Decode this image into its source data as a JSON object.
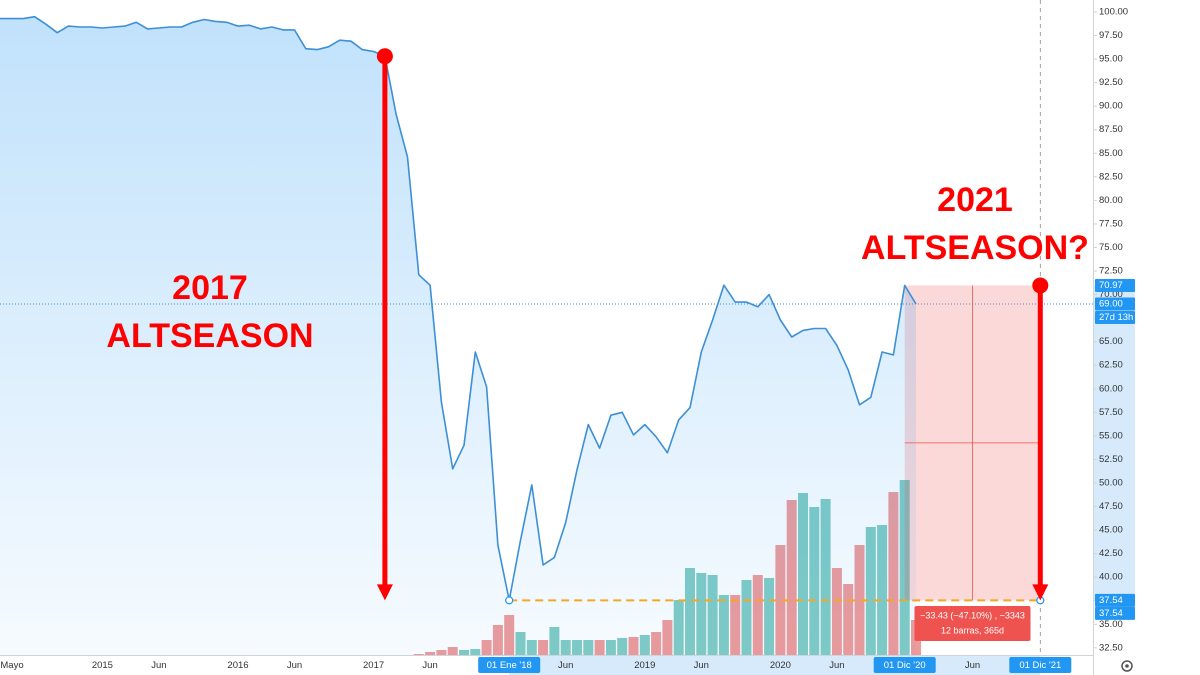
{
  "chart_data": {
    "type": "area",
    "color": "#3d8fd6",
    "categories": [
      "Mayo",
      null,
      null,
      null,
      null,
      null,
      null,
      null,
      "2015",
      null,
      null,
      null,
      null,
      "Jun",
      null,
      null,
      null,
      null,
      null,
      null,
      "2016",
      null,
      null,
      null,
      null,
      "Jun",
      null,
      null,
      null,
      null,
      null,
      null,
      "2017",
      null,
      null,
      null,
      null,
      "Jun",
      null,
      null,
      null,
      null,
      null,
      null,
      "01 Ene '18",
      null,
      null,
      null,
      null,
      "Jun",
      null,
      null,
      null,
      null,
      null,
      null,
      "2019",
      null,
      null,
      null,
      null,
      "Jun",
      null,
      null,
      null,
      null,
      null,
      null,
      "2020",
      null,
      null,
      null,
      null,
      "Jun",
      null,
      null,
      null,
      null,
      null,
      "01 Dic '20",
      null,
      null,
      null,
      null,
      null,
      "Jun",
      null,
      null,
      null,
      null,
      null,
      "01 Dic '21"
    ],
    "values": [
      99.3,
      99.3,
      99.5,
      98.7,
      97.8,
      98.5,
      98.4,
      98.4,
      98.3,
      98.4,
      98.5,
      98.9,
      98.2,
      98.3,
      98.4,
      98.4,
      98.9,
      99.2,
      99.0,
      98.9,
      98.5,
      98.6,
      98.2,
      98.4,
      98.1,
      98.1,
      96.1,
      96.0,
      96.3,
      97.0,
      96.9,
      96.0,
      95.8,
      95.3,
      89.1,
      84.6,
      72.1,
      71.0,
      58.6,
      51.5,
      54.0,
      63.9,
      60.2,
      43.4,
      37.54,
      43.9,
      49.8,
      41.3,
      42.1,
      45.8,
      51.4,
      56.2,
      53.7,
      57.2,
      57.5,
      55.1,
      56.2,
      54.9,
      53.2,
      56.7,
      58.0,
      63.9,
      67.3,
      71.0,
      69.2,
      69.2,
      68.7,
      70.0,
      67.3,
      65.5,
      66.2,
      66.4,
      66.4,
      64.6,
      62.0,
      58.3,
      59.1,
      63.9,
      63.6,
      70.97,
      69.0,
      null,
      null,
      null,
      null,
      null,
      null,
      null,
      null,
      null,
      null,
      null
    ],
    "volume": [
      null,
      null,
      null,
      null,
      null,
      null,
      null,
      null,
      null,
      null,
      null,
      null,
      null,
      null,
      null,
      null,
      null,
      null,
      null,
      null,
      null,
      null,
      null,
      null,
      null,
      null,
      null,
      null,
      null,
      null,
      null,
      null,
      null,
      null,
      null,
      null,
      1,
      3,
      5,
      8,
      5,
      6,
      15,
      30,
      40,
      23,
      15,
      15,
      28,
      15,
      15,
      15,
      15,
      15,
      17,
      18,
      20,
      23,
      35,
      55,
      87,
      82,
      80,
      60,
      60,
      75,
      80,
      77,
      110,
      155,
      162,
      148,
      156,
      87,
      71,
      110,
      128,
      130,
      163,
      175,
      35,
      null,
      null,
      null,
      null,
      null,
      null,
      null,
      null,
      null,
      null,
      null
    ],
    "volume_colors": {
      "up": "#80cbc4",
      "down": "#ef9a9a"
    },
    "ylim": [
      31.74,
      101.27
    ],
    "yticks": [
      {
        "value": 32.5,
        "label": "32.50"
      },
      {
        "value": 35,
        "label": "35.00"
      },
      {
        "value": 37.5,
        "label": "37.50"
      },
      {
        "value": 40,
        "label": "40.00"
      },
      {
        "value": 42.5,
        "label": "42.50"
      },
      {
        "value": 45,
        "label": "45.00"
      },
      {
        "value": 47.5,
        "label": "47.50"
      },
      {
        "value": 50,
        "label": "50.00"
      },
      {
        "value": 52.5,
        "label": "52.50"
      },
      {
        "value": 55,
        "label": "55.00"
      },
      {
        "value": 57.5,
        "label": "57.50"
      },
      {
        "value": 60,
        "label": "60.00"
      },
      {
        "value": 62.5,
        "label": "62.50"
      },
      {
        "value": 65,
        "label": "65.00"
      },
      {
        "value": 67.5,
        "label": "67.50"
      },
      {
        "value": 70,
        "label": "70.00"
      },
      {
        "value": 72.5,
        "label": "72.50"
      },
      {
        "value": 75,
        "label": "75.00"
      },
      {
        "value": 77.5,
        "label": "77.50"
      },
      {
        "value": 80,
        "label": "80.00"
      },
      {
        "value": 82.5,
        "label": "82.50"
      },
      {
        "value": 85,
        "label": "85.00"
      },
      {
        "value": 87.5,
        "label": "87.50"
      },
      {
        "value": 90,
        "label": "90.00"
      },
      {
        "value": 92.5,
        "label": "92.50"
      },
      {
        "value": 95,
        "label": "95.00"
      },
      {
        "value": 97.5,
        "label": "97.50"
      },
      {
        "value": 100,
        "label": "100.00"
      }
    ],
    "price_tags": [
      {
        "value": 70.97,
        "label": "70.97"
      },
      {
        "value": 69.0,
        "label": "69.00"
      },
      {
        "value": 37.54,
        "label": "37.54"
      },
      {
        "value": 37.54,
        "label": "37.54"
      }
    ],
    "countdown": "27d 13h",
    "annotations": [
      {
        "lines": [
          "2017",
          "ALTSEASON"
        ]
      },
      {
        "lines": [
          "2021",
          "ALTSEASON?"
        ]
      }
    ],
    "annotation_color": "#ff0000",
    "arrows": [
      {
        "index": 33,
        "from": 95.3,
        "to": 37.54
      },
      {
        "index": 91,
        "from": 70.97,
        "to": 37.54
      }
    ],
    "support": {
      "value": 37.54,
      "start_index": 44,
      "end_index": 91,
      "color": "#f5a623"
    },
    "measure": {
      "start_index": 79,
      "end_index": 91,
      "from": 70.97,
      "to": 37.54,
      "color": "#ef5350",
      "change_label": "−33.43 (−47.10%) , −3343",
      "bars_label": "12 barras, 365d"
    }
  }
}
